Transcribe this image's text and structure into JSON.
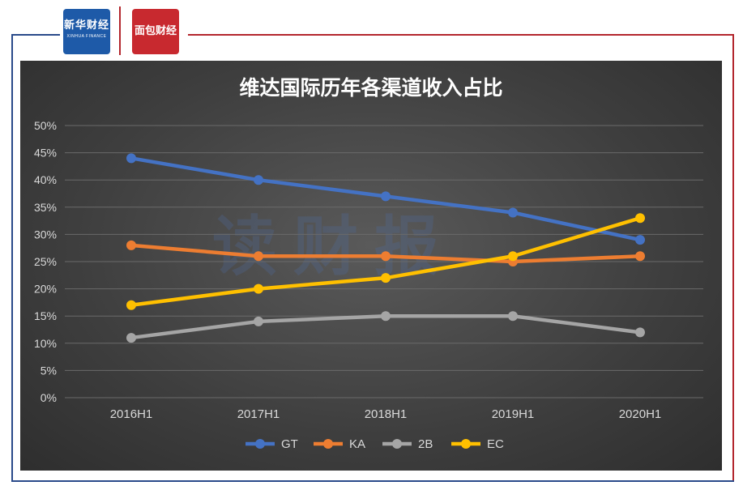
{
  "logos": {
    "left_name": "新华财经",
    "left_sub": "XINHUA FINANCE",
    "right_name": "面包财经"
  },
  "watermark": "读财报",
  "chart_data": {
    "type": "line",
    "title": "维达国际历年各渠道收入占比",
    "categories": [
      "2016H1",
      "2017H1",
      "2018H1",
      "2019H1",
      "2020H1"
    ],
    "y_ticks": [
      "0%",
      "5%",
      "10%",
      "15%",
      "20%",
      "25%",
      "30%",
      "35%",
      "40%",
      "45%",
      "50%"
    ],
    "ylim": [
      0,
      50
    ],
    "grid": true,
    "legend_position": "bottom",
    "series": [
      {
        "name": "GT",
        "color": "#4472c4",
        "values": [
          44,
          40,
          37,
          34,
          29
        ]
      },
      {
        "name": "KA",
        "color": "#ed7d31",
        "values": [
          28,
          26,
          26,
          25,
          26
        ]
      },
      {
        "name": "2B",
        "color": "#a5a5a5",
        "values": [
          11,
          14,
          15,
          15,
          12
        ]
      },
      {
        "name": "EC",
        "color": "#ffc000",
        "values": [
          17,
          20,
          22,
          26,
          33
        ]
      }
    ]
  }
}
